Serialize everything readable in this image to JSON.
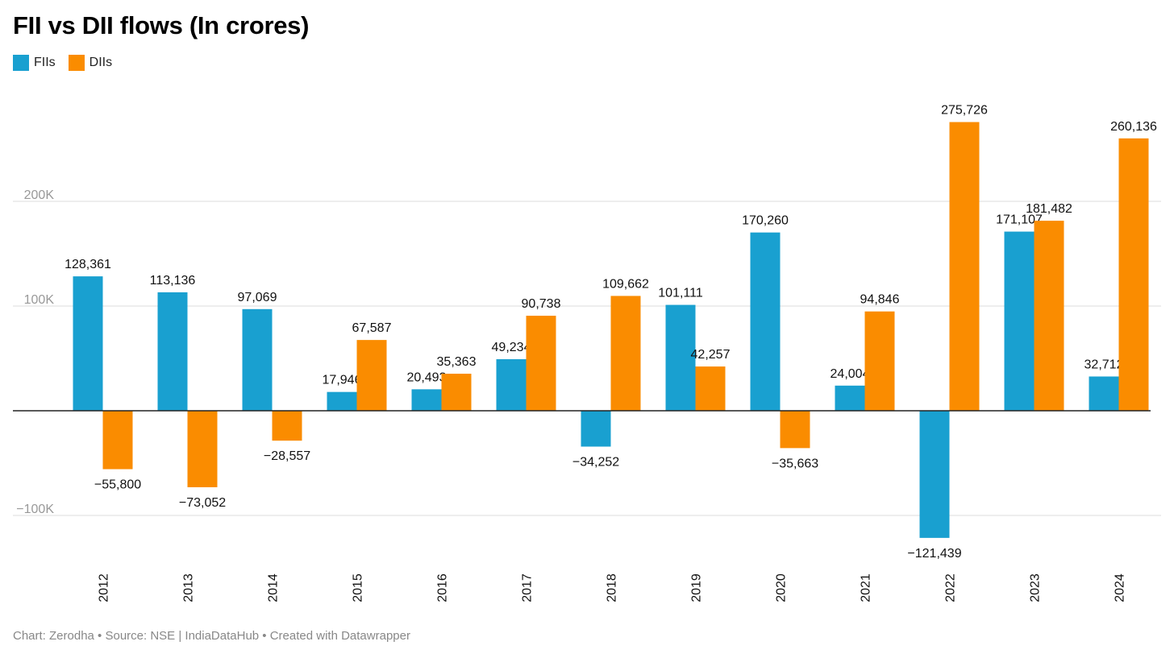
{
  "title": "FII vs DII flows (In crores)",
  "footer": "Chart: Zerodha • Source: NSE | IndiaDataHub • Created with Datawrapper",
  "colors": {
    "FIIs": "#19a0d0",
    "DIIs": "#fa8c00"
  },
  "chart_data": {
    "type": "bar",
    "title": "FII vs DII flows (In crores)",
    "categories": [
      "2012",
      "2013",
      "2014",
      "2015",
      "2016",
      "2017",
      "2018",
      "2019",
      "2020",
      "2021",
      "2022",
      "2023",
      "2024"
    ],
    "series": [
      {
        "name": "FIIs",
        "color": "#19a0d0",
        "values": [
          128361,
          113136,
          97069,
          17946,
          20493,
          49234,
          -34252,
          101111,
          170260,
          24004,
          -121439,
          171107,
          32712
        ],
        "labels": [
          "128,361",
          "113,136",
          "97,069",
          "17,946",
          "20,493",
          "49,234",
          "−34,252",
          "101,111",
          "170,260",
          "24,004",
          "−121,439",
          "171,107",
          "32,712"
        ]
      },
      {
        "name": "DIIs",
        "color": "#fa8c00",
        "values": [
          -55800,
          -73052,
          -28557,
          67587,
          35363,
          90738,
          109662,
          42257,
          -35663,
          94846,
          275726,
          181482,
          260136
        ],
        "labels": [
          "−55,800",
          "−73,052",
          "−28,557",
          "67,587",
          "35,363",
          "90,738",
          "109,662",
          "42,257",
          "−35,663",
          "94,846",
          "275,726",
          "181,482",
          "260,136"
        ]
      }
    ],
    "yticks": [
      {
        "value": 200000,
        "label": "200K"
      },
      {
        "value": 100000,
        "label": "100K"
      },
      {
        "value": -100000,
        "label": "−100K"
      }
    ],
    "ylim": [
      -140000,
      300000
    ],
    "legend_position": "top-left",
    "grid": true
  }
}
